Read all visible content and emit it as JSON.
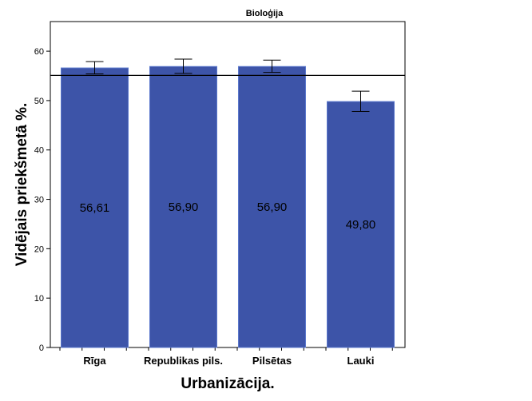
{
  "chart_data": {
    "type": "bar",
    "title": "Bioloģija",
    "xlabel": "Urbanizācija.",
    "ylabel": "Vidējais priekšmetā %.",
    "categories": [
      "Rīga",
      "Republikas pils.",
      "Pilsētas",
      "Lauki"
    ],
    "values": [
      56.61,
      56.9,
      56.9,
      49.8
    ],
    "value_labels": [
      "56,61",
      "56,90",
      "56,90",
      "49,80"
    ],
    "error_low": [
      55.4,
      55.5,
      55.7,
      47.8
    ],
    "error_high": [
      57.9,
      58.4,
      58.2,
      51.9
    ],
    "reference_line": 55.1,
    "ylim": [
      0,
      66
    ],
    "yticks": [
      0,
      10,
      20,
      30,
      40,
      50,
      60
    ],
    "grid": false,
    "legend": "none"
  },
  "colors": {
    "bar": "#3d54a8",
    "bar_edge": "#5b78cc",
    "axis": "#000000"
  }
}
